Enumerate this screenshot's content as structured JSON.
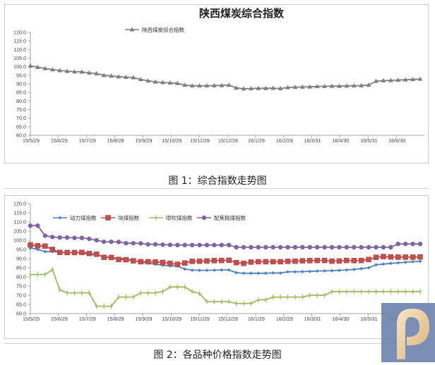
{
  "figure1": {
    "caption": "图 1：综合指数走势图"
  },
  "figure2": {
    "caption": "图 2：各品种价格指数走势图"
  },
  "chart_data": [
    {
      "type": "line",
      "title": "陕西煤炭综合指数",
      "xlabel": "",
      "ylabel": "",
      "ylim": [
        60,
        120
      ],
      "yticks": [
        "120.0",
        "115.0",
        "110.0",
        "105.0",
        "100.0",
        "95.0",
        "90.0",
        "85.0",
        "80.0",
        "75.0",
        "70.0",
        "65.0",
        "60.0"
      ],
      "xticks": [
        "15/5/29",
        "15/6/29",
        "15/7/29",
        "15/8/29",
        "15/9/29",
        "15/10/29",
        "15/11/29",
        "15/12/29",
        "16/1/29",
        "16/2/29",
        "16/3/31",
        "16/4/30",
        "16/5/31",
        "16/6/30"
      ],
      "grid": false,
      "legend_position": "top",
      "series": [
        {
          "name": "陕西煤炭综合指数",
          "color": "#7f7f7f",
          "marker": "triangle",
          "values": [
            100.5,
            99.7,
            99.0,
            98.3,
            97.8,
            97.4,
            97.1,
            97.0,
            96.4,
            96.0,
            95.0,
            94.6,
            94.2,
            93.9,
            93.7,
            92.6,
            91.8,
            91.2,
            90.8,
            90.6,
            90.3,
            89.3,
            88.9,
            88.9,
            88.9,
            89.0,
            89.1,
            89.3,
            87.6,
            87.2,
            87.3,
            87.4,
            87.4,
            87.5,
            87.3,
            87.9,
            88.1,
            88.2,
            88.3,
            88.5,
            88.6,
            88.7,
            88.7,
            88.8,
            88.9,
            89.0,
            89.3,
            91.6,
            91.9,
            92.0,
            92.2,
            92.4,
            92.6,
            92.8
          ]
        }
      ]
    },
    {
      "type": "line",
      "title": "",
      "xlabel": "",
      "ylabel": "",
      "ylim": [
        60,
        120
      ],
      "yticks": [
        "120.0",
        "115.0",
        "110.0",
        "105.0",
        "100.0",
        "95.0",
        "90.0",
        "85.0",
        "80.0",
        "75.0",
        "70.0",
        "65.0",
        "60.0"
      ],
      "xticks": [
        "15/5/29",
        "15/6/29",
        "15/7/29",
        "15/8/29",
        "15/9/29",
        "15/10/29",
        "15/11/29",
        "15/12/29",
        "16/1/29",
        "16/2/29",
        "16/3/31",
        "16/4/30",
        "16/5/31",
        "16/6/30"
      ],
      "grid": false,
      "legend_position": "top",
      "series": [
        {
          "name": "动力煤指数",
          "color": "#4f81bd",
          "marker": "diamond",
          "values": [
            95.8,
            95.0,
            93.8,
            93.8,
            93.5,
            93.3,
            93.3,
            93.0,
            92.3,
            92.0,
            91.0,
            90.5,
            90.1,
            89.9,
            89.0,
            88.2,
            87.5,
            86.9,
            86.4,
            86.0,
            85.9,
            84.3,
            83.7,
            83.6,
            83.6,
            83.7,
            83.8,
            83.8,
            82.3,
            82.0,
            82.0,
            82.0,
            82.0,
            82.2,
            82.1,
            82.8,
            82.8,
            82.9,
            83.0,
            83.2,
            83.3,
            83.4,
            83.6,
            83.8,
            84.1,
            84.5,
            85.0,
            86.6,
            87.0,
            87.4,
            87.7,
            88.0,
            88.3,
            88.5
          ]
        },
        {
          "name": "块煤指数",
          "color": "#c0504d",
          "marker": "square",
          "values": [
            97.5,
            97.0,
            96.8,
            95.0,
            93.4,
            93.3,
            93.3,
            93.4,
            92.8,
            92.4,
            90.7,
            90.6,
            89.5,
            89.4,
            88.8,
            88.3,
            88.3,
            88.2,
            87.9,
            87.4,
            86.9,
            87.6,
            88.5,
            88.6,
            88.7,
            88.9,
            89.0,
            89.1,
            87.8,
            87.4,
            88.1,
            88.3,
            88.3,
            88.3,
            88.3,
            88.5,
            88.6,
            88.8,
            88.9,
            89.0,
            89.0,
            88.6,
            88.7,
            89.0,
            88.9,
            89.0,
            89.5,
            90.7,
            91.1,
            90.9,
            90.8,
            90.8,
            90.8,
            90.9
          ]
        },
        {
          "name": "喷吹煤指数",
          "color": "#9bbb59",
          "marker": "plus",
          "values": [
            81.3,
            81.3,
            81.3,
            84.0,
            73.0,
            71.3,
            71.3,
            71.3,
            71.3,
            64.0,
            64.0,
            64.0,
            69.0,
            69.0,
            69.0,
            71.3,
            71.3,
            71.3,
            72.0,
            74.5,
            74.5,
            74.5,
            72.0,
            71.0,
            66.5,
            66.5,
            66.5,
            66.5,
            65.5,
            65.5,
            65.5,
            67.5,
            67.5,
            69.0,
            69.0,
            69.0,
            69.0,
            69.0,
            70.0,
            70.0,
            70.0,
            72.0,
            72.0,
            72.0,
            72.0,
            72.0,
            72.0,
            72.0,
            72.0,
            72.0,
            72.0,
            72.0,
            72.0,
            72.0
          ]
        },
        {
          "name": "配焦精煤指数",
          "color": "#8064a2",
          "marker": "circle",
          "values": [
            108.0,
            108.0,
            102.5,
            101.8,
            101.5,
            101.5,
            101.3,
            101.3,
            100.8,
            100.0,
            99.2,
            99.2,
            99.1,
            98.4,
            98.4,
            98.3,
            97.8,
            97.8,
            97.6,
            97.5,
            97.4,
            97.4,
            97.4,
            97.4,
            97.4,
            97.4,
            97.4,
            97.4,
            96.2,
            96.2,
            96.2,
            96.2,
            96.2,
            96.2,
            96.2,
            96.2,
            96.2,
            96.2,
            96.2,
            96.2,
            96.2,
            96.2,
            96.2,
            96.2,
            96.2,
            96.2,
            96.2,
            96.2,
            96.2,
            96.2,
            98.0,
            98.0,
            98.0,
            98.0
          ]
        }
      ]
    }
  ]
}
